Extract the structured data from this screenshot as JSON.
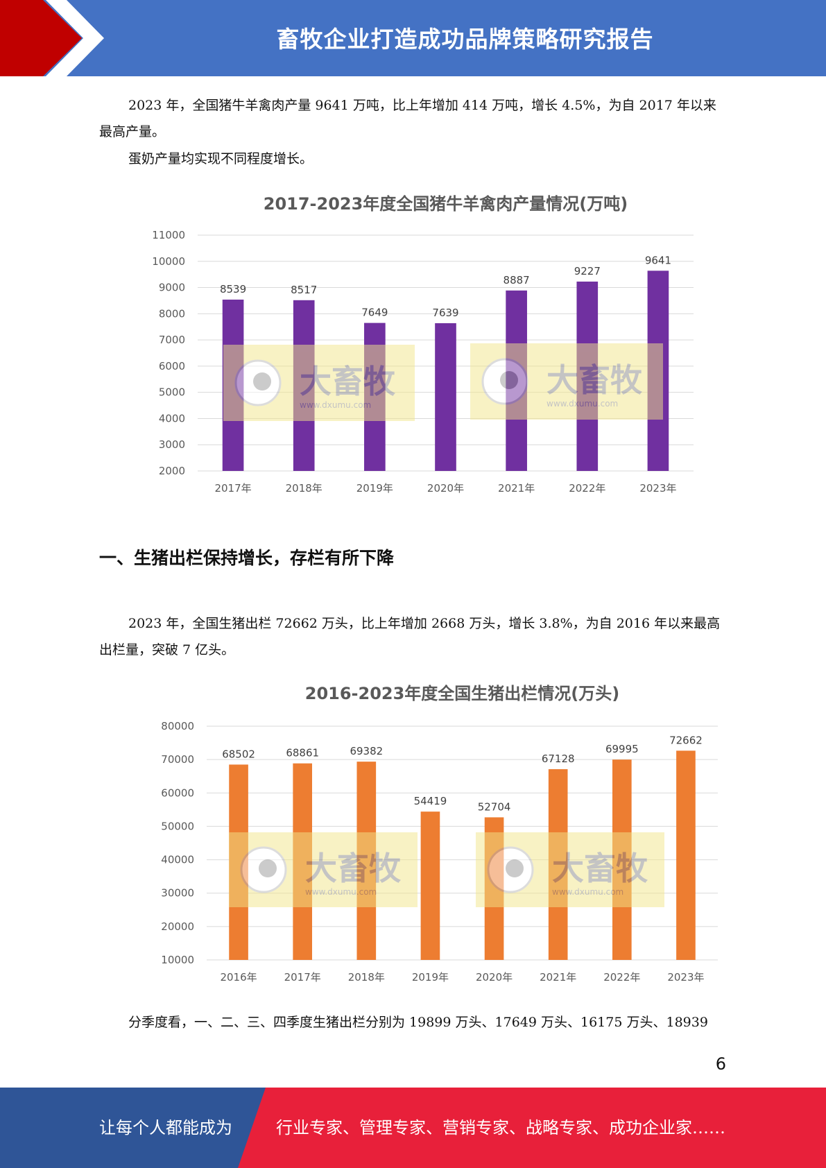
{
  "header": {
    "title": "畜牧企业打造成功品牌策略研究报告"
  },
  "paragraphs": {
    "p1": "2023 年，全国猪牛羊禽肉产量 9641 万吨，比上年增加 414 万吨，增长 4.5%，为自 2017 年以来最高产量。",
    "p2": "蛋奶产量均实现不同程度增长。",
    "p3": "2023 年，全国生猪出栏 72662 万头，比上年增加 2668 万头，增长 3.8%，为自 2016 年以来最高出栏量，突破 7 亿头。",
    "p4": "分季度看，一、二、三、四季度生猪出栏分别为 19899 万头、17649 万头、16175 万头、18939"
  },
  "section_heading": "一、生猪出栏保持增长，存栏有所下降",
  "page_number": "6",
  "footer": {
    "left": "让每个人都能成为",
    "right": "行业专家、管理专家、营销专家、战略专家、成功企业家……"
  },
  "watermark": {
    "brand": "大畜牧",
    "url": "www.dxumu.com"
  },
  "colors": {
    "header_blue": "#4472c4",
    "header_red": "#c00000",
    "chart1_bar": "#7030a0",
    "chart2_bar": "#ed7d31",
    "footer_blue": "#2f5597",
    "footer_red": "#e8203a"
  },
  "chart_data": [
    {
      "type": "bar",
      "title": "2017-2023年度全国猪牛羊禽肉产量情况(万吨)",
      "categories": [
        "2017年",
        "2018年",
        "2019年",
        "2020年",
        "2021年",
        "2022年",
        "2023年"
      ],
      "values": [
        8539,
        8517,
        7649,
        7639,
        8887,
        9227,
        9641
      ],
      "ylim": [
        2000,
        11000
      ],
      "yticks": [
        2000,
        3000,
        4000,
        5000,
        6000,
        7000,
        8000,
        9000,
        10000,
        11000
      ],
      "grid": true
    },
    {
      "type": "bar",
      "title": "2016-2023年度全国生猪出栏情况(万头)",
      "categories": [
        "2016年",
        "2017年",
        "2018年",
        "2019年",
        "2020年",
        "2021年",
        "2022年",
        "2023年"
      ],
      "values": [
        68502,
        68861,
        69382,
        54419,
        52704,
        67128,
        69995,
        72662
      ],
      "ylim": [
        10000,
        80000
      ],
      "yticks": [
        10000,
        20000,
        30000,
        40000,
        50000,
        60000,
        70000,
        80000
      ],
      "grid": true
    }
  ]
}
